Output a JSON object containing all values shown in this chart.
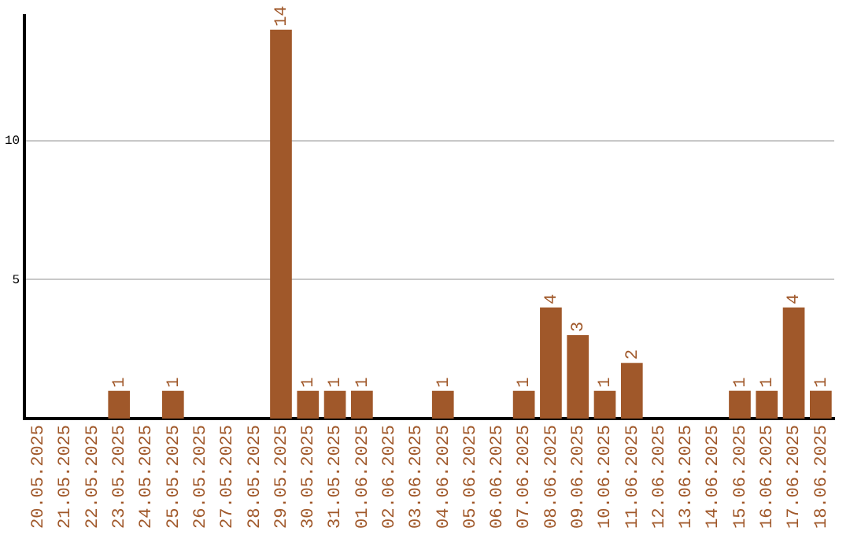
{
  "chart_data": {
    "type": "bar",
    "categories": [
      "20.05.2025",
      "21.05.2025",
      "22.05.2025",
      "23.05.2025",
      "24.05.2025",
      "25.05.2025",
      "26.05.2025",
      "27.05.2025",
      "28.05.2025",
      "29.05.2025",
      "30.05.2025",
      "31.05.2025",
      "01.06.2025",
      "02.06.2025",
      "03.06.2025",
      "04.06.2025",
      "05.06.2025",
      "06.06.2025",
      "07.06.2025",
      "08.06.2025",
      "09.06.2025",
      "10.06.2025",
      "11.06.2025",
      "12.06.2025",
      "13.06.2025",
      "14.06.2025",
      "15.06.2025",
      "16.06.2025",
      "17.06.2025",
      "18.06.2025"
    ],
    "values": [
      0,
      0,
      0,
      1,
      0,
      1,
      0,
      0,
      0,
      14,
      1,
      1,
      1,
      0,
      0,
      1,
      0,
      0,
      1,
      4,
      3,
      1,
      2,
      0,
      0,
      0,
      1,
      1,
      4,
      1
    ],
    "value_labels": [
      null,
      null,
      null,
      "1",
      null,
      "1",
      null,
      null,
      null,
      "14",
      "1",
      "1",
      "1",
      null,
      null,
      "1",
      null,
      null,
      "1",
      "4",
      "3",
      "1",
      "2",
      null,
      null,
      null,
      "1",
      "1",
      "4",
      "1"
    ],
    "color": "#a0582a",
    "ylim": [
      0,
      14.5
    ],
    "yticks": [
      5,
      10
    ],
    "grid": "y",
    "legend": false
  }
}
